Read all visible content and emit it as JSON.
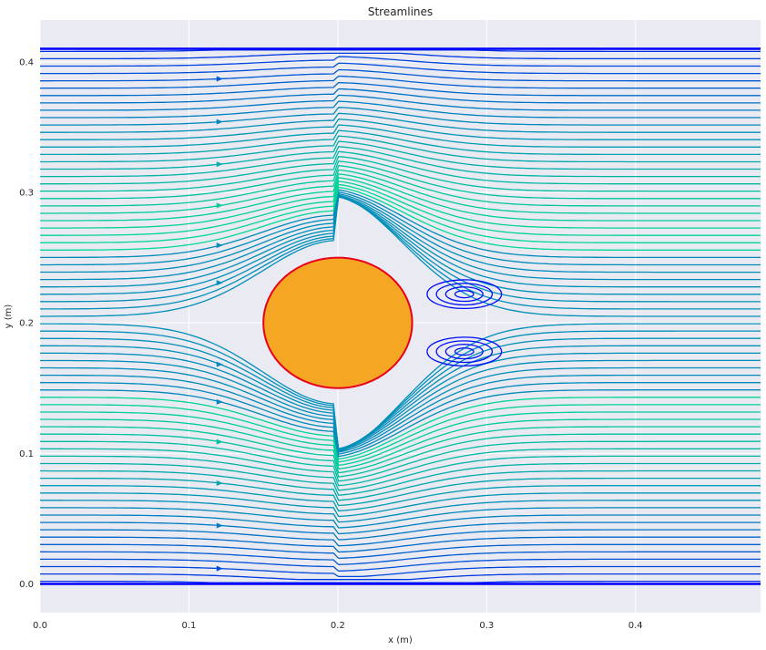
{
  "chart_data": {
    "type": "streamplot",
    "title": "Streamlines",
    "xlabel": "x (m)",
    "ylabel": "y (m)",
    "xlim": [
      0.0,
      0.484
    ],
    "ylim": [
      -0.022,
      0.432
    ],
    "x_ticks": [
      0.0,
      0.1,
      0.2,
      0.3,
      0.4
    ],
    "x_tick_labels": [
      "0.0",
      "0.1",
      "0.2",
      "0.3",
      "0.4"
    ],
    "y_ticks": [
      0.0,
      0.1,
      0.2,
      0.3,
      0.4
    ],
    "y_tick_labels": [
      "0.0",
      "0.1",
      "0.2",
      "0.3",
      "0.4"
    ],
    "grid": true,
    "channel": {
      "x_min": 0.0,
      "x_max": 0.484,
      "y_min": 0.0,
      "y_max": 0.41
    },
    "inlet_wall_band": {
      "x_min": 0.0,
      "x_max": 0.484,
      "y_min": 0.0,
      "y_max": 0.41
    },
    "obstacle": {
      "shape": "circle",
      "center": [
        0.2,
        0.2
      ],
      "radius": 0.05,
      "fill_color": "#f5a623",
      "edge_color": "#e8001c"
    },
    "recirculation_eddies": [
      {
        "center": [
          0.285,
          0.222
        ],
        "half_length": 0.025,
        "half_height": 0.011
      },
      {
        "center": [
          0.285,
          0.178
        ],
        "half_length": 0.025,
        "half_height": 0.011
      }
    ],
    "colormap": {
      "name": "winter",
      "low": "#0000ff",
      "high": "#00ff80"
    },
    "colors": {
      "plot_background": "#eaeaf2",
      "grid": "#ffffff",
      "text": "#262626"
    }
  }
}
